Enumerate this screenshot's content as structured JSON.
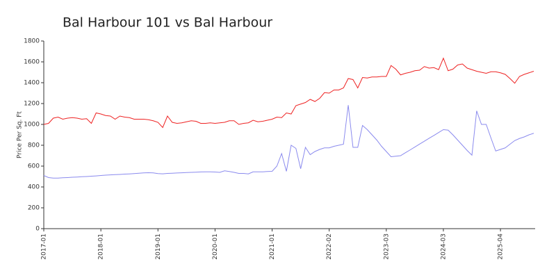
{
  "chart_data": {
    "type": "line",
    "title": "Bal Harbour 101 vs Bal Harbour",
    "y_label": "Price Per Sq. Ft",
    "categories": [
      "2017-01",
      null,
      null,
      null,
      null,
      null,
      null,
      null,
      null,
      null,
      null,
      null,
      "2018-01",
      null,
      null,
      null,
      null,
      null,
      null,
      null,
      null,
      null,
      null,
      null,
      "2019-01",
      null,
      null,
      null,
      null,
      null,
      null,
      null,
      null,
      null,
      null,
      null,
      "2020-01",
      null,
      null,
      null,
      null,
      null,
      null,
      null,
      null,
      null,
      null,
      null,
      "2021-01",
      null,
      null,
      null,
      null,
      null,
      null,
      null,
      null,
      null,
      null,
      null,
      "2022-02",
      null,
      null,
      null,
      null,
      null,
      null,
      null,
      null,
      null,
      null,
      null,
      "2023-03",
      null,
      null,
      null,
      null,
      null,
      null,
      null,
      null,
      null,
      null,
      null,
      "2024-03",
      null,
      null,
      null,
      null,
      null,
      null,
      null,
      null,
      null,
      null,
      null,
      "2025-04",
      null,
      null,
      null,
      null,
      null,
      null,
      null
    ],
    "series": [
      {
        "name": "Bal Harbour 101",
        "color": "#ee2222",
        "values": [
          1000,
          1010,
          1060,
          1070,
          1050,
          1060,
          1065,
          1060,
          1050,
          1055,
          1010,
          1110,
          1100,
          1085,
          1080,
          1050,
          1080,
          1070,
          1065,
          1050,
          1050,
          1050,
          1045,
          1035,
          1020,
          970,
          1080,
          1020,
          1010,
          1015,
          1025,
          1035,
          1030,
          1010,
          1010,
          1015,
          1010,
          1015,
          1020,
          1035,
          1035,
          1000,
          1010,
          1015,
          1040,
          1025,
          1030,
          1040,
          1050,
          1070,
          1065,
          1110,
          1100,
          1180,
          1195,
          1210,
          1240,
          1220,
          1250,
          1305,
          1300,
          1330,
          1330,
          1350,
          1440,
          1430,
          1350,
          1450,
          1445,
          1455,
          1455,
          1460,
          1460,
          1565,
          1530,
          1475,
          1490,
          1500,
          1515,
          1520,
          1555,
          1540,
          1545,
          1525,
          1635,
          1515,
          1530,
          1570,
          1580,
          1540,
          1525,
          1510,
          1500,
          1490,
          1505,
          1505,
          1495,
          1480,
          1440,
          1395,
          1460,
          1480,
          1495,
          1510
        ]
      },
      {
        "name": "Bal Harbour",
        "color": "#8a8aee",
        "values": [
          510,
          490,
          485,
          485,
          488,
          490,
          493,
          495,
          498,
          500,
          503,
          506,
          510,
          513,
          516,
          518,
          520,
          523,
          525,
          528,
          532,
          535,
          537,
          535,
          528,
          526,
          530,
          532,
          534,
          536,
          538,
          540,
          542,
          544,
          545,
          545,
          543,
          540,
          555,
          548,
          540,
          530,
          530,
          525,
          545,
          545,
          545,
          548,
          550,
          600,
          720,
          550,
          800,
          770,
          575,
          780,
          710,
          740,
          760,
          775,
          775,
          790,
          800,
          810,
          1185,
          780,
          780,
          990,
          950,
          900,
          850,
          790,
          740,
          690,
          695,
          700,
          728,
          755,
          783,
          811,
          839,
          867,
          894,
          922,
          950,
          945,
          900,
          850,
          800,
          750,
          705,
          1130,
          1000,
          1000,
          870,
          745,
          760,
          775,
          810,
          845,
          865,
          880,
          900,
          915
        ]
      }
    ],
    "ylim": [
      0,
      1800
    ],
    "yticks": [
      0,
      200,
      400,
      600,
      800,
      1000,
      1200,
      1400,
      1600,
      1800
    ],
    "grid": false
  }
}
